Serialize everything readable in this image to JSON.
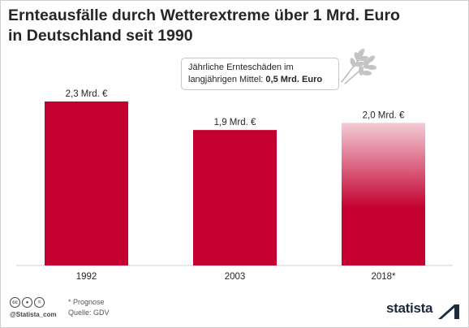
{
  "title_lines": [
    "Ernteausfälle durch Wetterextreme über 1 Mrd. Euro",
    "in Deutschland seit 1990"
  ],
  "callout": {
    "line1": "Jährliche Ernteschäden im",
    "line2_prefix": "langjährigen Mittel: ",
    "line2_bold": "0,5 Mrd. Euro"
  },
  "chart_data": {
    "type": "bar",
    "categories": [
      "1992",
      "2003",
      "2018*"
    ],
    "values": [
      2.3,
      1.9,
      2.0
    ],
    "data_labels": [
      "2,3 Mrd. €",
      "1,9 Mrd. €",
      "2,0 Mrd. €"
    ],
    "unit": "Mrd. €",
    "ylim": [
      0,
      2.3
    ],
    "grid": false,
    "bar_color": "#c3002f",
    "projected_index": 2
  },
  "footer": {
    "note": "* Prognose",
    "source": "Quelle: GDV",
    "credit": "@Statista_com",
    "brand": "statista",
    "cc_icons": [
      "cc-icon",
      "by-icon",
      "equals-icon"
    ]
  }
}
